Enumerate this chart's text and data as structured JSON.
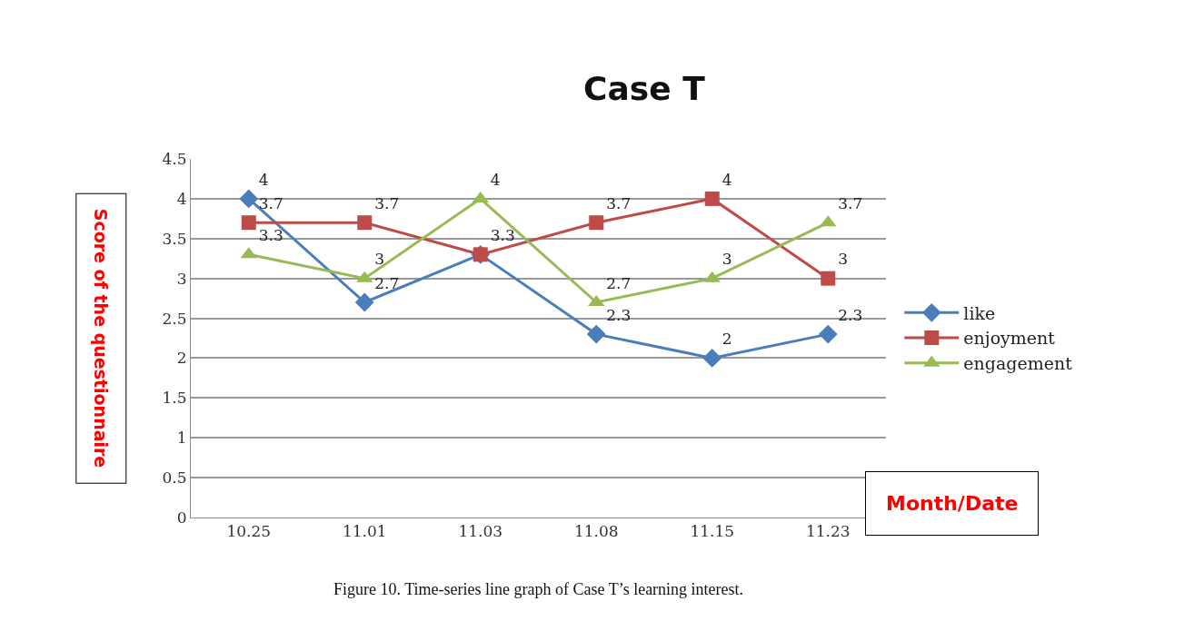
{
  "chart_data": {
    "type": "line",
    "title": "Case T",
    "xlabel": "Month/Date",
    "ylabel": "Score of the questionnaire",
    "categories": [
      "10.25",
      "11.01",
      "11.03",
      "11.08",
      "11.15",
      "11.23"
    ],
    "series": [
      {
        "name": "like",
        "color": "#4a7ebb",
        "marker": "diamond",
        "values": [
          4,
          2.7,
          3.3,
          2.3,
          2,
          2.3
        ],
        "value_labels": [
          "4",
          "2.7",
          "3.3",
          "2.3",
          "2",
          "2.3"
        ]
      },
      {
        "name": "enjoyment",
        "color": "#be4b48",
        "marker": "square",
        "values": [
          3.7,
          3.7,
          3.3,
          3.7,
          4,
          3
        ],
        "value_labels": [
          "3.7",
          "3.7",
          null,
          "3.7",
          "4",
          "3"
        ]
      },
      {
        "name": "engagement",
        "color": "#98b954",
        "marker": "triangle",
        "values": [
          3.3,
          3,
          4,
          2.7,
          3,
          3.7
        ],
        "value_labels": [
          "3.3",
          "3",
          "4",
          "2.7",
          "3",
          "3.7"
        ]
      }
    ],
    "ylim": [
      0,
      4.5
    ],
    "yticks": [
      0,
      0.5,
      1,
      1.5,
      2,
      2.5,
      3,
      3.5,
      4,
      4.5
    ],
    "grid": "y",
    "legend": "right",
    "line_style": "solid",
    "annotations": [
      "Figure 10. Time-series line graph of Case T’s learning interest."
    ]
  }
}
